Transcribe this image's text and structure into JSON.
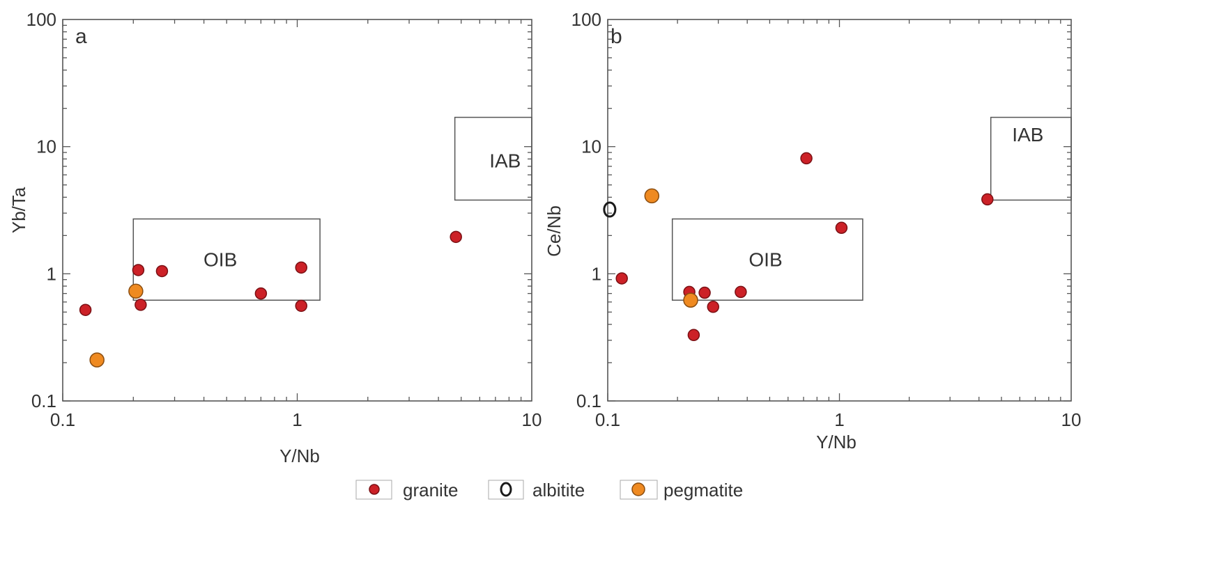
{
  "chart_data": [
    {
      "type": "scatter",
      "panel_label": "a",
      "xlabel": "Y/Nb",
      "ylabel": "Yb/Ta",
      "xscale": "log",
      "yscale": "log",
      "xlim": [
        0.1,
        10
      ],
      "ylim": [
        0.1,
        100
      ],
      "xticks": [
        {
          "v": 0.1,
          "label": "0.1"
        },
        {
          "v": 1,
          "label": "1"
        },
        {
          "v": 10,
          "label": "10"
        }
      ],
      "yticks": [
        {
          "v": 0.1,
          "label": "0.1"
        },
        {
          "v": 1,
          "label": "1"
        },
        {
          "v": 10,
          "label": "10"
        },
        {
          "v": 100,
          "label": "100"
        }
      ],
      "fields": [
        {
          "label": "OIB",
          "x": [
            0.2,
            1.25
          ],
          "y": [
            0.62,
            2.7
          ],
          "label_at": [
            0.47,
            1.3
          ]
        },
        {
          "label": "IAB",
          "x": [
            4.7,
            10
          ],
          "y": [
            3.8,
            17
          ],
          "label_at": [
            7.7,
            7.8
          ]
        }
      ],
      "series": [
        {
          "name": "granite",
          "points": [
            [
              0.125,
              0.52
            ],
            [
              0.21,
              1.07
            ],
            [
              0.215,
              0.57
            ],
            [
              0.265,
              1.05
            ],
            [
              0.7,
              0.7
            ],
            [
              1.04,
              1.12
            ],
            [
              1.04,
              0.56
            ],
            [
              4.75,
              1.95
            ]
          ]
        },
        {
          "name": "albitite",
          "points": []
        },
        {
          "name": "pegmatite",
          "points": [
            [
              0.205,
              0.73
            ],
            [
              0.14,
              0.21
            ]
          ]
        }
      ]
    },
    {
      "type": "scatter",
      "panel_label": "b",
      "xlabel": "Y/Nb",
      "ylabel": "Ce/Nb",
      "xscale": "log",
      "yscale": "log",
      "xlim": [
        0.1,
        10
      ],
      "ylim": [
        0.1,
        100
      ],
      "xticks": [
        {
          "v": 0.1,
          "label": "0.1"
        },
        {
          "v": 1,
          "label": "1"
        },
        {
          "v": 10,
          "label": "10"
        }
      ],
      "yticks": [
        {
          "v": 0.1,
          "label": "0.1"
        },
        {
          "v": 1,
          "label": "1"
        },
        {
          "v": 10,
          "label": "10"
        },
        {
          "v": 100,
          "label": "100"
        }
      ],
      "fields": [
        {
          "label": "IAB",
          "x": [
            4.5,
            10
          ],
          "y": [
            3.8,
            17
          ],
          "label_at": [
            6.5,
            12.5
          ]
        },
        {
          "label": "OIB",
          "x": [
            0.19,
            1.26
          ],
          "y": [
            0.62,
            2.7
          ],
          "label_at": [
            0.48,
            1.3
          ]
        }
      ],
      "series": [
        {
          "name": "granite",
          "points": [
            [
              0.115,
              0.92
            ],
            [
              0.225,
              0.72
            ],
            [
              0.262,
              0.71
            ],
            [
              0.285,
              0.55
            ],
            [
              0.235,
              0.33
            ],
            [
              0.375,
              0.72
            ],
            [
              0.72,
              8.1
            ],
            [
              1.02,
              2.3
            ],
            [
              4.35,
              3.85
            ]
          ]
        },
        {
          "name": "albitite",
          "points": [
            [
              0.102,
              3.2
            ]
          ]
        },
        {
          "name": "pegmatite",
          "points": [
            [
              0.155,
              4.1
            ],
            [
              0.228,
              0.62
            ]
          ]
        }
      ]
    }
  ],
  "legend": {
    "items": [
      {
        "label": "granite",
        "marker": "granite"
      },
      {
        "label": "albitite",
        "marker": "albitite"
      },
      {
        "label": "pegmatite",
        "marker": "pegmatite"
      }
    ]
  },
  "colors": {
    "granite_fill": "#cc2127",
    "granite_stroke": "#7a1014",
    "pegmatite_fill": "#ef8a21",
    "pegmatite_stroke": "#8a4d10",
    "albitite_stroke": "#1a1a1a",
    "axis": "#555555",
    "field": "#555555"
  }
}
